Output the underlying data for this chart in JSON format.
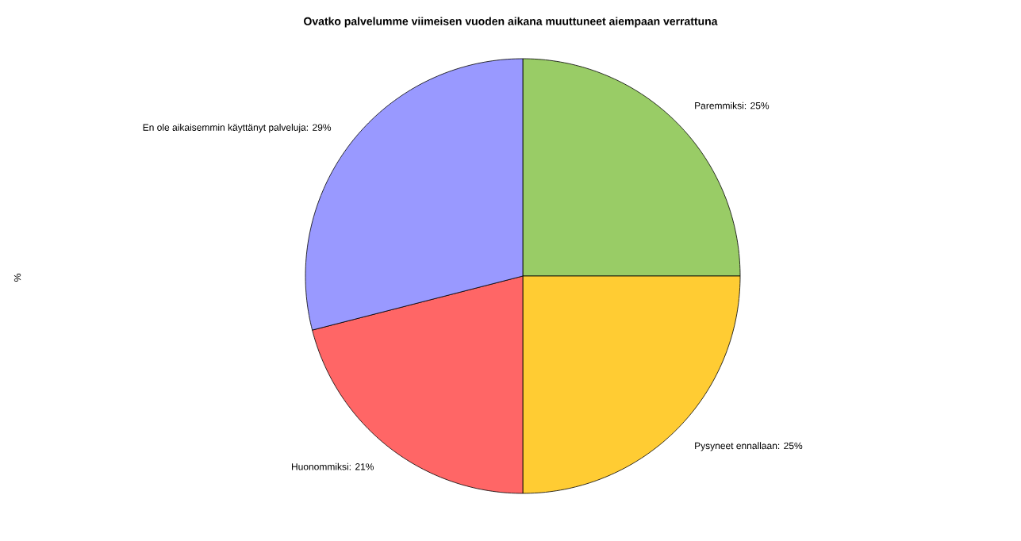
{
  "chart_data": {
    "type": "pie",
    "title": "Ovatko palvelumme viimeisen vuoden aikana muuttuneet aiempaan verrattuna",
    "ylabel": "%",
    "categories": [
      null,
      null,
      null,
      null
    ],
    "values": [
      25,
      25,
      21,
      29
    ],
    "value_labels": [
      "Paremmiksi: 25%",
      "Pysyneet ennallaan: 25%",
      "Huonommiksi: 21%",
      "En ole aikaisemmin käyttänyt palveluja: 29%"
    ],
    "colors": [
      "#99cc66",
      "#ffcc33",
      "#ff6666",
      "#9999ff"
    ]
  }
}
